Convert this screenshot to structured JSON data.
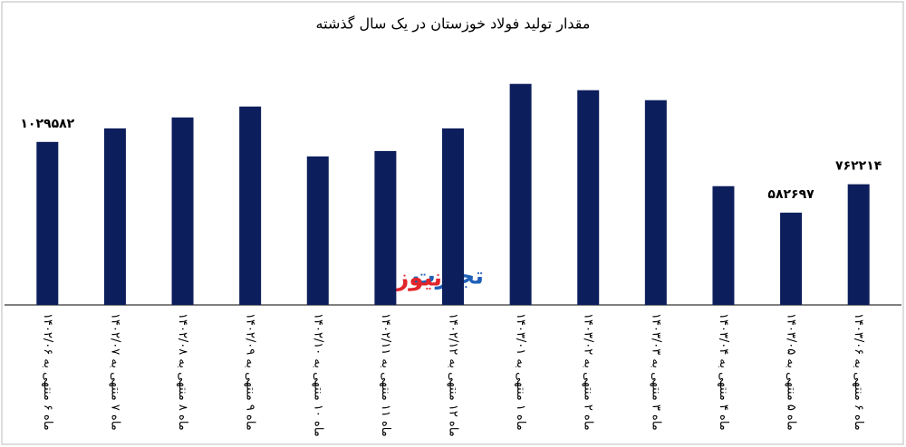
{
  "chart_data": {
    "type": "bar",
    "title": "مقدار تولید فولاد خوزستان در یک سال گذشته",
    "categories": [
      "ماه ۶ منتهی به ۱۴۰۲/۰۶",
      "ماه ۷ منتهی به ۱۴۰۲/۰۷",
      "ماه ۸ منتهی به ۱۴۰۲/۰۸",
      "ماه ۹ منتهی به ۱۴۰۲/۰۹",
      "ماه ۱۰ منتهی به ۱۴۰۲/۱۰",
      "ماه ۱۱ منتهی به ۱۴۰۲/۱۱",
      "ماه ۱۲ منتهی به ۱۴۰۲/۱۲",
      "ماه ۱ منتهی به ۱۴۰۳/۰۱",
      "ماه ۲ منتهی به ۱۴۰۳/۰۲",
      "ماه ۳ منتهی به ۱۴۰۳/۰۳",
      "ماه ۴ منتهی به ۱۴۰۳/۰۴",
      "ماه ۵ منتهی به ۱۴۰۳/۰۵",
      "ماه ۶ منتهی به ۱۴۰۳/۰۶"
    ],
    "values": [
      1029582,
      1115000,
      1184000,
      1253000,
      938000,
      972000,
      1115000,
      1396000,
      1356000,
      1293000,
      750000,
      582697,
      762214
    ],
    "value_labels": [
      "۱۰۲۹۵۸۲",
      null,
      null,
      null,
      null,
      null,
      null,
      null,
      null,
      null,
      null,
      "۵۸۲۶۹۷",
      "۷۶۲۲۱۴"
    ],
    "color": "#0d1e5c",
    "ylim": [
      0,
      1640000
    ],
    "watermark": {
      "part1": "تجارت",
      "part2": "نیوز"
    }
  }
}
